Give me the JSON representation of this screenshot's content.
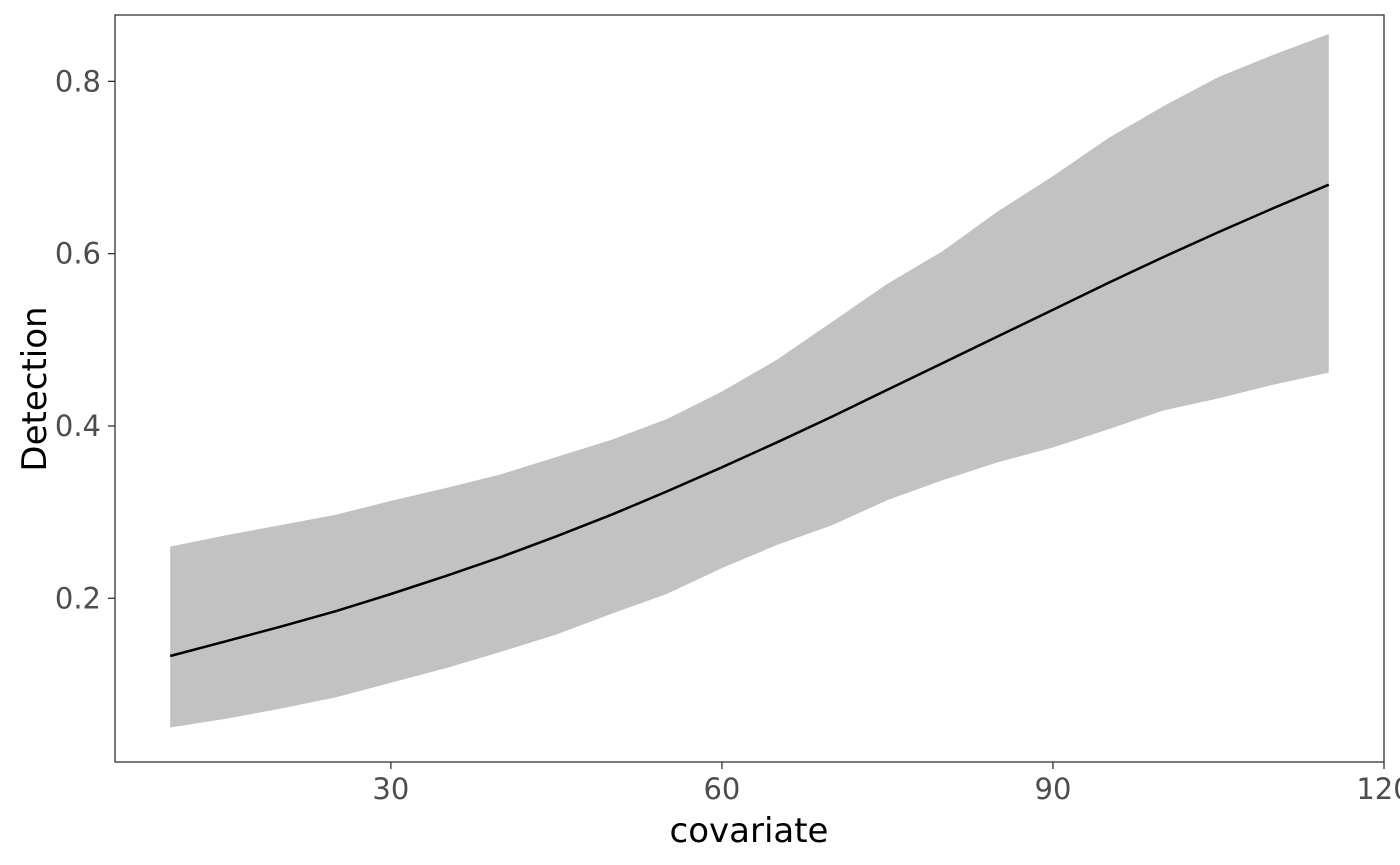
{
  "chart_data": {
    "type": "line",
    "title": "",
    "xlabel": "covariate",
    "ylabel": "Detection",
    "xlim": [
      5,
      120
    ],
    "ylim": [
      0.01,
      0.877
    ],
    "x_ticks": [
      30,
      60,
      90,
      120
    ],
    "x_tick_labels": [
      "30",
      "60",
      "90",
      "120"
    ],
    "y_ticks": [
      0.2,
      0.4,
      0.6,
      0.8
    ],
    "y_tick_labels": [
      "0.2",
      "0.4",
      "0.6",
      "0.8"
    ],
    "grid": false,
    "colors": {
      "line": "#000000",
      "ribbon": "#c2c2c2",
      "panel_border": "#333333",
      "tick_label": "#4d4d4d"
    },
    "series": [
      {
        "x": [
          10,
          15,
          20,
          25,
          30,
          35,
          40,
          45,
          50,
          55,
          60,
          65,
          70,
          75,
          80,
          85,
          90,
          95,
          100,
          105,
          110,
          115
        ],
        "y": [
          0.133,
          0.15,
          0.167,
          0.185,
          0.205,
          0.226,
          0.248,
          0.272,
          0.297,
          0.324,
          0.352,
          0.381,
          0.411,
          0.442,
          0.473,
          0.504,
          0.535,
          0.566,
          0.596,
          0.625,
          0.653,
          0.68
        ],
        "lower": [
          0.05,
          0.06,
          0.072,
          0.085,
          0.102,
          0.119,
          0.138,
          0.158,
          0.182,
          0.205,
          0.235,
          0.262,
          0.285,
          0.314,
          0.337,
          0.358,
          0.375,
          0.396,
          0.418,
          0.432,
          0.448,
          0.462
        ],
        "upper": [
          0.26,
          0.273,
          0.285,
          0.297,
          0.313,
          0.328,
          0.344,
          0.364,
          0.384,
          0.408,
          0.44,
          0.477,
          0.521,
          0.565,
          0.603,
          0.649,
          0.69,
          0.734,
          0.771,
          0.805,
          0.831,
          0.855
        ]
      }
    ]
  }
}
